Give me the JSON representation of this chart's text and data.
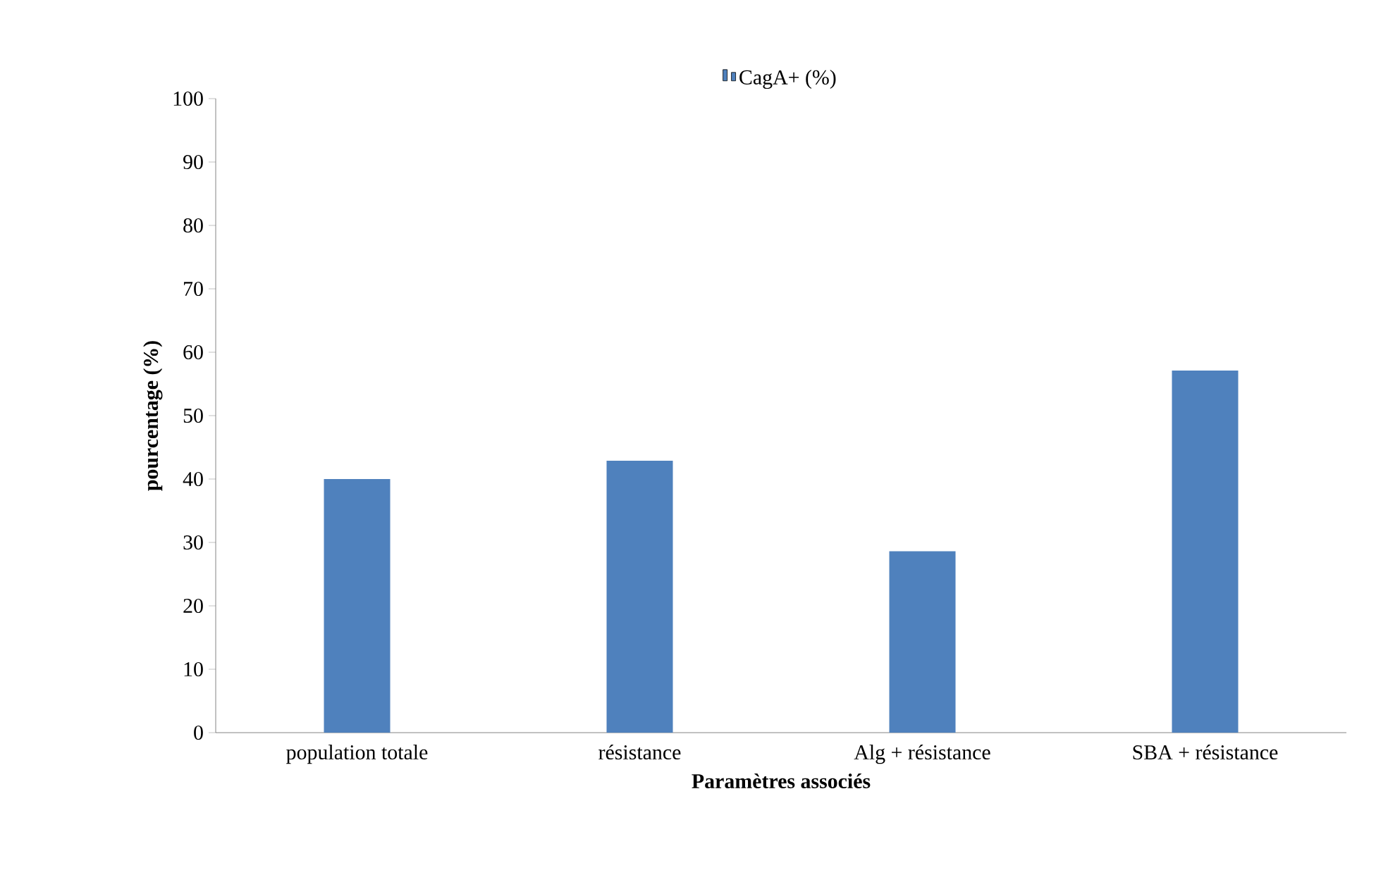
{
  "chart_data": {
    "type": "bar",
    "xlabel": "Paramètres associés",
    "ylabel": "pourcentage (%)",
    "categories": [
      "population totale",
      "résistance",
      "Alg + résistance",
      "SBA + résistance"
    ],
    "series": [
      {
        "name": "CagA+ (%)",
        "color": "#4f81bd",
        "values": [
          40,
          42.9,
          28.6,
          57.1
        ]
      }
    ],
    "ylim": [
      0,
      100
    ],
    "yticks": [
      0,
      10,
      20,
      30,
      40,
      50,
      60,
      70,
      80,
      90,
      100
    ],
    "legend": "top",
    "grid": false
  }
}
